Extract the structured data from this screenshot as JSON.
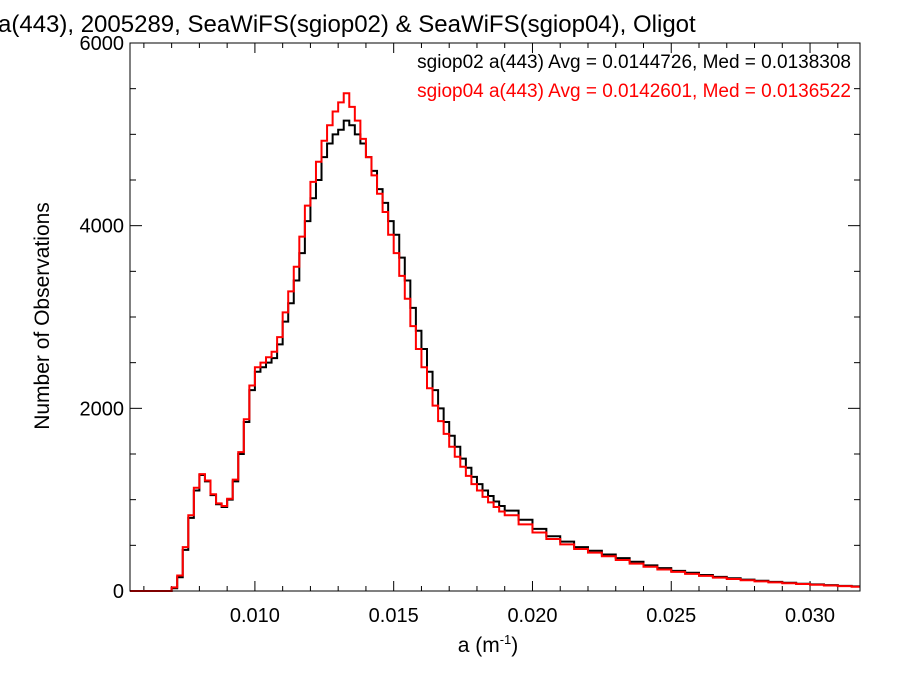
{
  "chart_data": {
    "type": "line",
    "title": "a(443), 2005289, SeaWiFS(sgiop02) & SeaWiFS(sgiop04), Oligot",
    "xlabel": "a (m",
    "xlabel_sup": "-1",
    "xlabel_end": ")",
    "ylabel": "Number of Observations",
    "xlim": [
      0.0055,
      0.0318
    ],
    "ylim": [
      0,
      6000
    ],
    "xticks": [
      0.01,
      0.015,
      0.02,
      0.025,
      0.03
    ],
    "xtick_labels": [
      "0.010",
      "0.015",
      "0.020",
      "0.025",
      "0.030"
    ],
    "yticks": [
      0,
      2000,
      4000,
      6000
    ],
    "ytick_labels": [
      "0",
      "2000",
      "4000",
      "6000"
    ],
    "legend_placement": "top-right",
    "line_shape": "step",
    "series": [
      {
        "name": "sgiop02",
        "label": "sgiop02 a(443) Avg = 0.0144726, Med = 0.0138308",
        "color": "#000000",
        "x": [
          0.0055,
          0.0068,
          0.007,
          0.0072,
          0.0074,
          0.0076,
          0.0078,
          0.008,
          0.0082,
          0.0084,
          0.0086,
          0.0088,
          0.009,
          0.0092,
          0.0094,
          0.0096,
          0.0098,
          0.01,
          0.0102,
          0.0104,
          0.0106,
          0.0108,
          0.011,
          0.0112,
          0.0114,
          0.0116,
          0.0118,
          0.012,
          0.0122,
          0.0124,
          0.0126,
          0.0128,
          0.013,
          0.0132,
          0.0134,
          0.0136,
          0.0138,
          0.014,
          0.0142,
          0.0144,
          0.0146,
          0.0148,
          0.015,
          0.0152,
          0.0154,
          0.0156,
          0.0158,
          0.016,
          0.0162,
          0.0164,
          0.0166,
          0.0168,
          0.017,
          0.0172,
          0.0174,
          0.0176,
          0.0178,
          0.018,
          0.0182,
          0.0184,
          0.0186,
          0.0188,
          0.019,
          0.0195,
          0.02,
          0.0205,
          0.021,
          0.0215,
          0.022,
          0.0225,
          0.023,
          0.0235,
          0.024,
          0.0245,
          0.025,
          0.0255,
          0.026,
          0.0265,
          0.027,
          0.0275,
          0.028,
          0.0285,
          0.029,
          0.0295,
          0.03,
          0.0305,
          0.031,
          0.0315
        ],
        "y": [
          0,
          0,
          30,
          150,
          450,
          800,
          1100,
          1270,
          1200,
          1050,
          950,
          920,
          1000,
          1200,
          1500,
          1850,
          2200,
          2400,
          2450,
          2500,
          2550,
          2700,
          2950,
          3150,
          3400,
          3700,
          4050,
          4300,
          4500,
          4750,
          4900,
          5000,
          5050,
          5150,
          5100,
          5000,
          4900,
          4750,
          4600,
          4400,
          4250,
          4050,
          3900,
          3650,
          3400,
          3100,
          2850,
          2650,
          2400,
          2200,
          2000,
          1850,
          1700,
          1580,
          1450,
          1350,
          1250,
          1170,
          1100,
          1040,
          980,
          930,
          880,
          780,
          680,
          600,
          540,
          480,
          440,
          400,
          360,
          320,
          280,
          250,
          220,
          200,
          175,
          155,
          140,
          125,
          112,
          100,
          90,
          80,
          72,
          64,
          56,
          50
        ]
      },
      {
        "name": "sgiop04",
        "label": "sgiop04 a(443) Avg = 0.0142601, Med = 0.0136522",
        "color": "#ff0000",
        "x": [
          0.0055,
          0.0068,
          0.007,
          0.0072,
          0.0074,
          0.0076,
          0.0078,
          0.008,
          0.0082,
          0.0084,
          0.0086,
          0.0088,
          0.009,
          0.0092,
          0.0094,
          0.0096,
          0.0098,
          0.01,
          0.0102,
          0.0104,
          0.0106,
          0.0108,
          0.011,
          0.0112,
          0.0114,
          0.0116,
          0.0118,
          0.012,
          0.0122,
          0.0124,
          0.0126,
          0.0128,
          0.013,
          0.0132,
          0.0134,
          0.0136,
          0.0138,
          0.014,
          0.0142,
          0.0144,
          0.0146,
          0.0148,
          0.015,
          0.0152,
          0.0154,
          0.0156,
          0.0158,
          0.016,
          0.0162,
          0.0164,
          0.0166,
          0.0168,
          0.017,
          0.0172,
          0.0174,
          0.0176,
          0.0178,
          0.018,
          0.0182,
          0.0184,
          0.0186,
          0.0188,
          0.019,
          0.0195,
          0.02,
          0.0205,
          0.021,
          0.0215,
          0.022,
          0.0225,
          0.023,
          0.0235,
          0.024,
          0.0245,
          0.025,
          0.0255,
          0.026,
          0.0265,
          0.027,
          0.0275,
          0.028,
          0.0285,
          0.029,
          0.0295,
          0.03,
          0.0305,
          0.031,
          0.0315
        ],
        "y": [
          0,
          0,
          40,
          170,
          480,
          830,
          1130,
          1280,
          1210,
          1060,
          960,
          930,
          1010,
          1220,
          1520,
          1880,
          2250,
          2450,
          2500,
          2560,
          2620,
          2780,
          3050,
          3280,
          3550,
          3880,
          4220,
          4480,
          4700,
          4930,
          5100,
          5250,
          5350,
          5450,
          5300,
          5150,
          4950,
          4750,
          4550,
          4350,
          4150,
          3900,
          3700,
          3450,
          3200,
          2900,
          2650,
          2450,
          2220,
          2030,
          1860,
          1720,
          1580,
          1470,
          1360,
          1260,
          1170,
          1100,
          1030,
          970,
          920,
          870,
          830,
          730,
          640,
          570,
          510,
          460,
          420,
          380,
          340,
          300,
          265,
          235,
          210,
          188,
          165,
          147,
          132,
          118,
          106,
          95,
          85,
          76,
          68,
          60,
          53,
          47
        ]
      }
    ]
  }
}
